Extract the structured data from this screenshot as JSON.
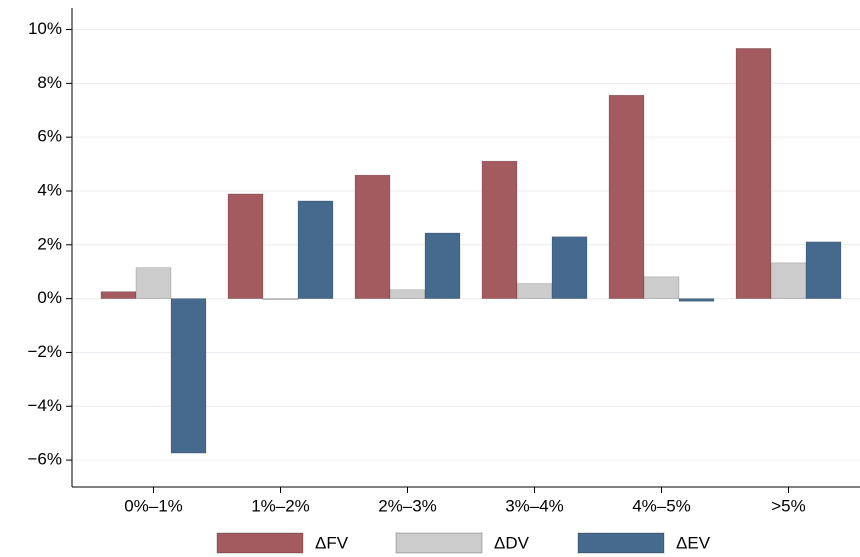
{
  "chart_data": {
    "type": "bar",
    "categories": [
      "0%–1%",
      "1%–2%",
      "2%–3%",
      "3%–4%",
      "4%–5%",
      ">5%"
    ],
    "series": [
      {
        "name": "ΔFV",
        "color": "#a35b5f",
        "values": [
          0.26,
          3.89,
          4.59,
          5.11,
          7.56,
          9.3
        ]
      },
      {
        "name": "ΔDV",
        "color": "#cccccc",
        "values": [
          1.15,
          -0.03,
          0.33,
          0.56,
          0.81,
          1.33
        ]
      },
      {
        "name": "ΔEV",
        "color": "#466a8d",
        "values": [
          -5.74,
          3.63,
          2.44,
          2.3,
          -0.1,
          2.11
        ]
      }
    ],
    "ylim": [
      -7,
      10.8
    ],
    "yticks": [
      {
        "value": -6,
        "label": "−6%"
      },
      {
        "value": -4,
        "label": "−4%"
      },
      {
        "value": -2,
        "label": "−2%"
      },
      {
        "value": 0,
        "label": "0%"
      },
      {
        "value": 2,
        "label": "2%"
      },
      {
        "value": 4,
        "label": "4%"
      },
      {
        "value": 6,
        "label": "6%"
      },
      {
        "value": 8,
        "label": "8%"
      },
      {
        "value": 10,
        "label": "10%"
      }
    ],
    "grid": true,
    "legend": "bottom"
  }
}
